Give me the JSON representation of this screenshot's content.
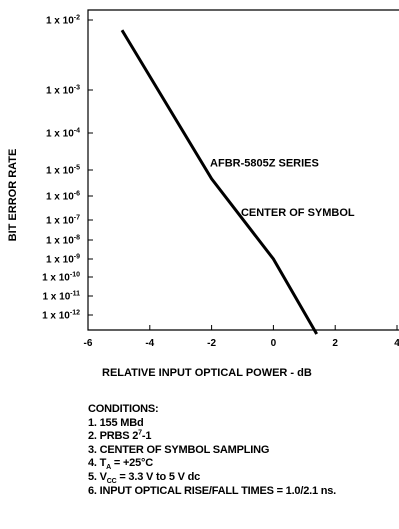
{
  "chart_data": {
    "type": "line",
    "title": "",
    "xlabel": "RELATIVE INPUT OPTICAL POWER - dB",
    "ylabel": "BIT ERROR RATE",
    "x_ticks": [
      "-6",
      "-4",
      "-2",
      "0",
      "2",
      "4"
    ],
    "x_tick_values": [
      -6,
      -4,
      -2,
      0,
      2,
      4
    ],
    "y_ticks": [
      {
        "exp": -2,
        "mant": "1 x 10",
        "sup": "-2"
      },
      {
        "exp": -3,
        "mant": "1 x 10",
        "sup": "-3"
      },
      {
        "exp": -4,
        "mant": "1 x 10",
        "sup": "-4"
      },
      {
        "exp": -5,
        "mant": "1 x 10",
        "sup": "-5"
      },
      {
        "exp": -6,
        "mant": "1 x 10",
        "sup": "-6"
      },
      {
        "exp": -7,
        "mant": "1 x 10",
        "sup": "-7"
      },
      {
        "exp": -8,
        "mant": "1 x 10",
        "sup": "-8"
      },
      {
        "exp": -9,
        "mant": "1 x 10",
        "sup": "-9"
      },
      {
        "exp": -10,
        "mant": "1 x 10",
        "sup": "-10"
      },
      {
        "exp": -11,
        "mant": "1 x 10",
        "sup": "-11"
      },
      {
        "exp": -12,
        "mant": "1 x 10",
        "sup": "-12"
      }
    ],
    "xlim": [
      -6,
      4
    ],
    "series": [
      {
        "color": "#000000",
        "x": [
          -4.9,
          -2.0,
          0.0,
          1.4
        ],
        "y": [
          0.014,
          4.6e-06,
          1e-09,
          1e-13
        ]
      }
    ],
    "annotations": [
      {
        "text": "AFBR-5805Z SERIES",
        "x": -2.05,
        "y": 1.58e-05
      },
      {
        "text": "CENTER OF SYMBOL",
        "x": -1.05,
        "y": 2.2e-07
      }
    ],
    "grid": false
  },
  "conditions": {
    "heading": "CONDITIONS:",
    "items": [
      {
        "pre": "1. 155 MBd"
      },
      {
        "pre": "2. PRBS 2",
        "sup": "7",
        "post": "-1"
      },
      {
        "pre": "3. CENTER OF SYMBOL SAMPLING"
      },
      {
        "pre": "4. T",
        "sub": "A",
        "post": " = +25°C"
      },
      {
        "pre": "5. V",
        "sub": "CC",
        "post": " = 3.3 V to 5 V dc"
      },
      {
        "pre": "6. INPUT OPTICAL RISE/FALL TIMES = 1.0/2.1 ns."
      }
    ]
  }
}
